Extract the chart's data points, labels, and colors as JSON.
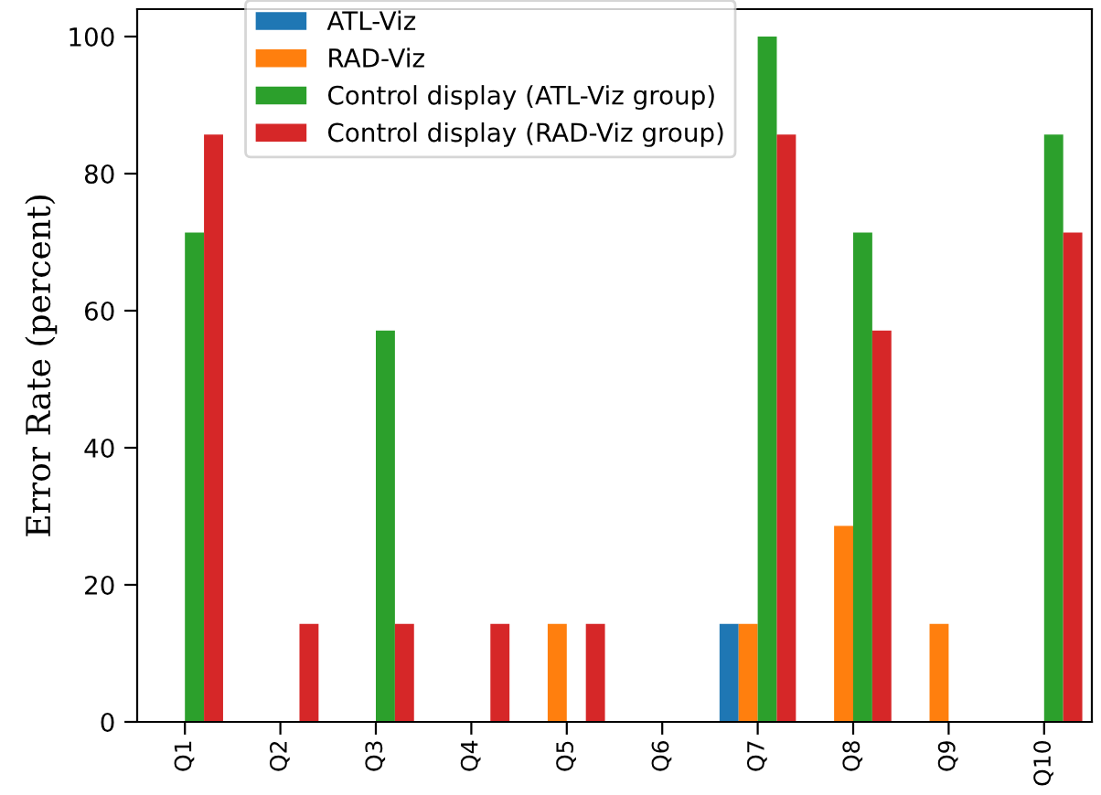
{
  "chart_data": {
    "type": "bar",
    "ylabel": "Error Rate (percent)",
    "categories": [
      "Q1",
      "Q2",
      "Q3",
      "Q4",
      "Q5",
      "Q6",
      "Q7",
      "Q8",
      "Q9",
      "Q10"
    ],
    "series": [
      {
        "name": "ATL-Viz",
        "color": "#1f77b4",
        "values": [
          0,
          0,
          0,
          0,
          0,
          0,
          14.3,
          0,
          0,
          0
        ]
      },
      {
        "name": "RAD-Viz",
        "color": "#ff7f0e",
        "values": [
          0,
          0,
          0,
          0,
          14.3,
          0,
          14.3,
          28.6,
          14.3,
          0
        ]
      },
      {
        "name": "Control display (ATL-Viz group)",
        "color": "#2ca02c",
        "values": [
          71.4,
          0,
          57.1,
          0,
          0,
          0,
          100,
          71.4,
          0,
          85.7
        ]
      },
      {
        "name": "Control display (RAD-Viz group)",
        "color": "#d62728",
        "values": [
          85.7,
          14.3,
          14.3,
          14.3,
          14.3,
          0,
          85.7,
          57.1,
          0,
          71.4
        ]
      }
    ],
    "ylim": [
      0,
      104
    ],
    "yticks": [
      0,
      20,
      40,
      60,
      80,
      100
    ],
    "grid": false,
    "legend": "top"
  }
}
